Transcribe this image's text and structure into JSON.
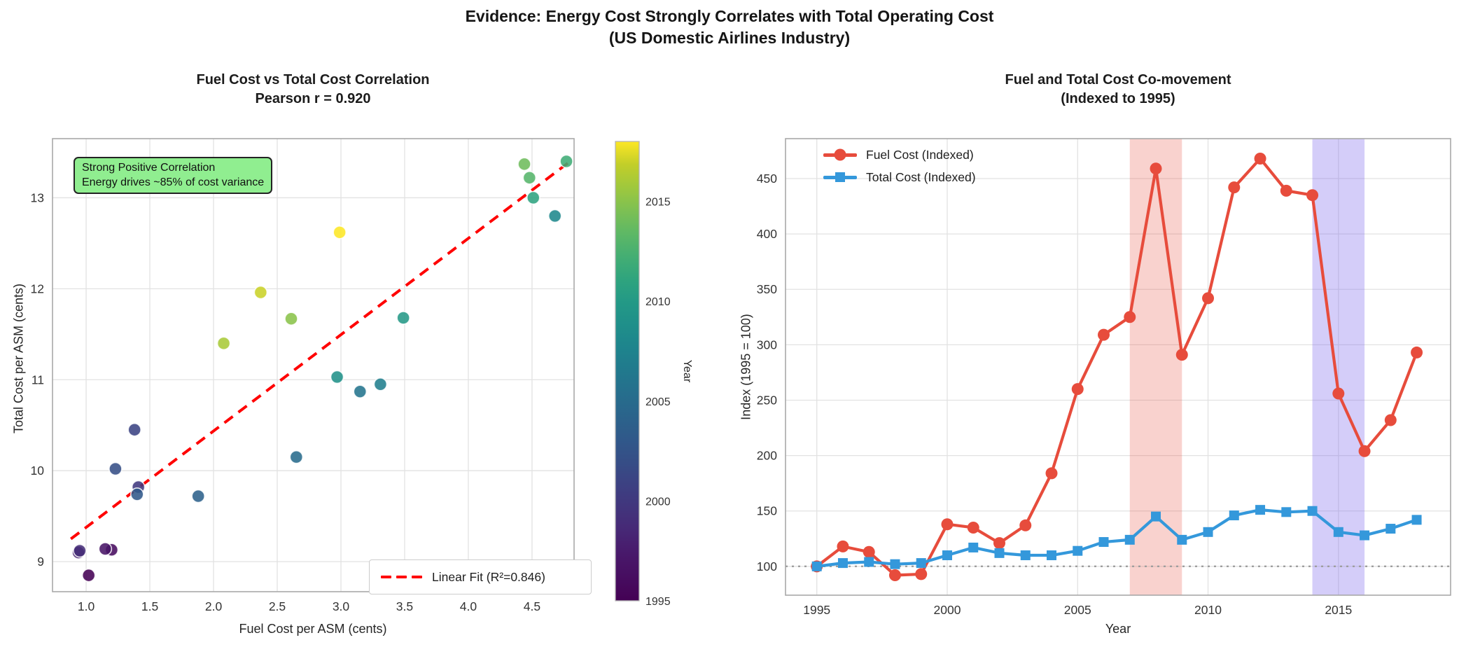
{
  "suptitle": {
    "line1": "Evidence: Energy Cost Strongly Correlates with Total Operating Cost",
    "line2": "(US Domestic Airlines Industry)"
  },
  "chart_data": [
    {
      "type": "scatter",
      "title_lines": [
        "Fuel Cost vs Total Cost Correlation",
        "Pearson r = 0.920"
      ],
      "xlabel": "Fuel Cost per ASM (cents)",
      "ylabel": "Total Cost per ASM (cents)",
      "xlim": [
        0.736,
        4.83
      ],
      "ylim": [
        8.67,
        13.65
      ],
      "x_ticks": [
        "1.0",
        "1.5",
        "2.0",
        "2.5",
        "3.0",
        "3.5",
        "4.0",
        "4.5"
      ],
      "y_ticks": [
        "9",
        "10",
        "11",
        "12",
        "13"
      ],
      "grid": true,
      "points": [
        {
          "year": 1995,
          "x": 1.02,
          "y": 8.85
        },
        {
          "year": 1996,
          "x": 1.2,
          "y": 9.13
        },
        {
          "year": 1997,
          "x": 1.15,
          "y": 9.14
        },
        {
          "year": 1998,
          "x": 0.94,
          "y": 9.1
        },
        {
          "year": 1999,
          "x": 0.95,
          "y": 9.12
        },
        {
          "year": 2000,
          "x": 1.41,
          "y": 9.82
        },
        {
          "year": 2001,
          "x": 1.38,
          "y": 10.45
        },
        {
          "year": 2002,
          "x": 1.23,
          "y": 10.02
        },
        {
          "year": 2003,
          "x": 1.4,
          "y": 9.74
        },
        {
          "year": 2004,
          "x": 1.88,
          "y": 9.72
        },
        {
          "year": 2005,
          "x": 2.65,
          "y": 10.15
        },
        {
          "year": 2006,
          "x": 3.15,
          "y": 10.87
        },
        {
          "year": 2007,
          "x": 3.31,
          "y": 10.95
        },
        {
          "year": 2008,
          "x": 4.68,
          "y": 12.8
        },
        {
          "year": 2009,
          "x": 2.97,
          "y": 11.03
        },
        {
          "year": 2010,
          "x": 3.49,
          "y": 11.68
        },
        {
          "year": 2011,
          "x": 4.51,
          "y": 13.0
        },
        {
          "year": 2012,
          "x": 4.77,
          "y": 13.4
        },
        {
          "year": 2013,
          "x": 4.48,
          "y": 13.22
        },
        {
          "year": 2014,
          "x": 4.44,
          "y": 13.37
        },
        {
          "year": 2015,
          "x": 2.61,
          "y": 11.67
        },
        {
          "year": 2016,
          "x": 2.08,
          "y": 11.4
        },
        {
          "year": 2017,
          "x": 2.37,
          "y": 11.96
        },
        {
          "year": 2018,
          "x": 2.99,
          "y": 12.62
        }
      ],
      "fit_line": {
        "label": "Linear Fit (R²=0.846)",
        "x1": 0.88,
        "y1": 9.25,
        "x2": 4.78,
        "y2": 13.38,
        "color": "#ff0000",
        "style": "dashed"
      },
      "annotation": {
        "lines": [
          "Strong Positive Correlation",
          "Energy drives ~85% of cost variance"
        ],
        "bg_color": "#90ee90",
        "border_color": "#232323"
      },
      "legend_position": "lower right",
      "colorbar": {
        "label": "Year",
        "min": 1995,
        "max": 2018,
        "ticks": [
          "1995",
          "2000",
          "2005",
          "2010",
          "2015"
        ],
        "colormap": "viridis",
        "stops": [
          [
            0.0,
            "#440154"
          ],
          [
            0.05,
            "#470d60"
          ],
          [
            0.1,
            "#48186a"
          ],
          [
            0.15,
            "#472775"
          ],
          [
            0.2,
            "#42347c"
          ],
          [
            0.25,
            "#3d4082"
          ],
          [
            0.3,
            "#364d86"
          ],
          [
            0.35,
            "#30588a"
          ],
          [
            0.4,
            "#2b638b"
          ],
          [
            0.45,
            "#266e8d"
          ],
          [
            0.5,
            "#21798d"
          ],
          [
            0.55,
            "#1e848d"
          ],
          [
            0.6,
            "#1f8f8a"
          ],
          [
            0.65,
            "#239986"
          ],
          [
            0.7,
            "#2fa47e"
          ],
          [
            0.75,
            "#44ae73"
          ],
          [
            0.8,
            "#5eb865"
          ],
          [
            0.85,
            "#7dc053"
          ],
          [
            0.9,
            "#9fc83d"
          ],
          [
            0.95,
            "#c2ce29"
          ],
          [
            1.0,
            "#fde725"
          ]
        ]
      }
    },
    {
      "type": "line",
      "title_lines": [
        "Fuel and Total Cost Co-movement",
        "(Indexed to 1995)"
      ],
      "xlabel": "Year",
      "ylabel": "Index (1995 = 100)",
      "xlim": [
        1993.8,
        2019.3
      ],
      "ylim": [
        74,
        486
      ],
      "x_ticks": [
        "1995",
        "2000",
        "2005",
        "2010",
        "2015"
      ],
      "y_ticks": [
        "100",
        "150",
        "200",
        "250",
        "300",
        "350",
        "400",
        "450"
      ],
      "grid": true,
      "x": [
        1995,
        1996,
        1997,
        1998,
        1999,
        2000,
        2001,
        2002,
        2003,
        2004,
        2005,
        2006,
        2007,
        2008,
        2009,
        2010,
        2011,
        2012,
        2013,
        2014,
        2015,
        2016,
        2017,
        2018
      ],
      "series": [
        {
          "name": "Fuel Cost (Indexed)",
          "marker": "circle",
          "color": "#e74c3c",
          "values": [
            100,
            118,
            113,
            92,
            93,
            138,
            135,
            121,
            137,
            184,
            260,
            309,
            325,
            459,
            291,
            342,
            442,
            468,
            439,
            435,
            256,
            204,
            232,
            293
          ]
        },
        {
          "name": "Total Cost (Indexed)",
          "marker": "square",
          "color": "#3498db",
          "values": [
            100,
            103,
            104,
            102,
            103,
            110,
            117,
            112,
            110,
            110,
            114,
            122,
            124,
            145,
            124,
            131,
            146,
            151,
            149,
            150,
            131,
            128,
            134,
            142
          ]
        }
      ],
      "reference_line": {
        "y": 100,
        "color": "#9e9e9e",
        "style": "dotted"
      },
      "highlight_bands": [
        {
          "x_from": 2007,
          "x_to": 2009,
          "color": "#e74c3c",
          "opacity": 0.25
        },
        {
          "x_from": 2014,
          "x_to": 2016,
          "color": "#7b68ee",
          "opacity": 0.33
        }
      ],
      "legend_position": "upper left"
    }
  ]
}
